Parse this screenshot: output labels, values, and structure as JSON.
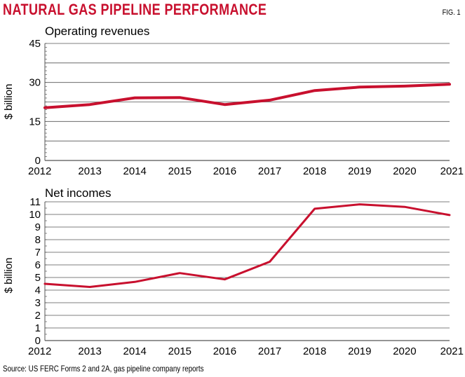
{
  "header": {
    "title": "NATURAL GAS PIPELINE PERFORMANCE",
    "fig_label": "FIG. 1"
  },
  "footer": {
    "source": "Source: US FERC Forms 2 and 2A, gas pipeline company reports"
  },
  "colors": {
    "accent": "#c8102e",
    "grid": "#555555"
  },
  "chart_data": [
    {
      "type": "line",
      "title": "Operating revenues",
      "xlabel": "",
      "ylabel": "$ billion",
      "x": [
        2012,
        2013,
        2014,
        2015,
        2016,
        2017,
        2018,
        2019,
        2020,
        2021
      ],
      "ylim": [
        0,
        45
      ],
      "yticks": [
        0,
        15,
        30,
        45
      ],
      "grid": true,
      "series": [
        {
          "name": "Operating revenues",
          "values": [
            20.3,
            21.5,
            24.1,
            24.2,
            21.5,
            23.2,
            26.9,
            28.2,
            28.6,
            29.3
          ]
        }
      ]
    },
    {
      "type": "line",
      "title": "Net incomes",
      "xlabel": "",
      "ylabel": "$ billion",
      "x": [
        2012,
        2013,
        2014,
        2015,
        2016,
        2017,
        2018,
        2019,
        2020,
        2021
      ],
      "ylim": [
        0,
        11
      ],
      "yticks": [
        0,
        1,
        2,
        3,
        4,
        5,
        6,
        7,
        8,
        9,
        10,
        11
      ],
      "grid": true,
      "series": [
        {
          "name": "Net incomes",
          "values": [
            4.5,
            4.25,
            4.65,
            5.35,
            4.85,
            6.25,
            10.45,
            10.8,
            10.6,
            9.95
          ]
        }
      ]
    }
  ]
}
